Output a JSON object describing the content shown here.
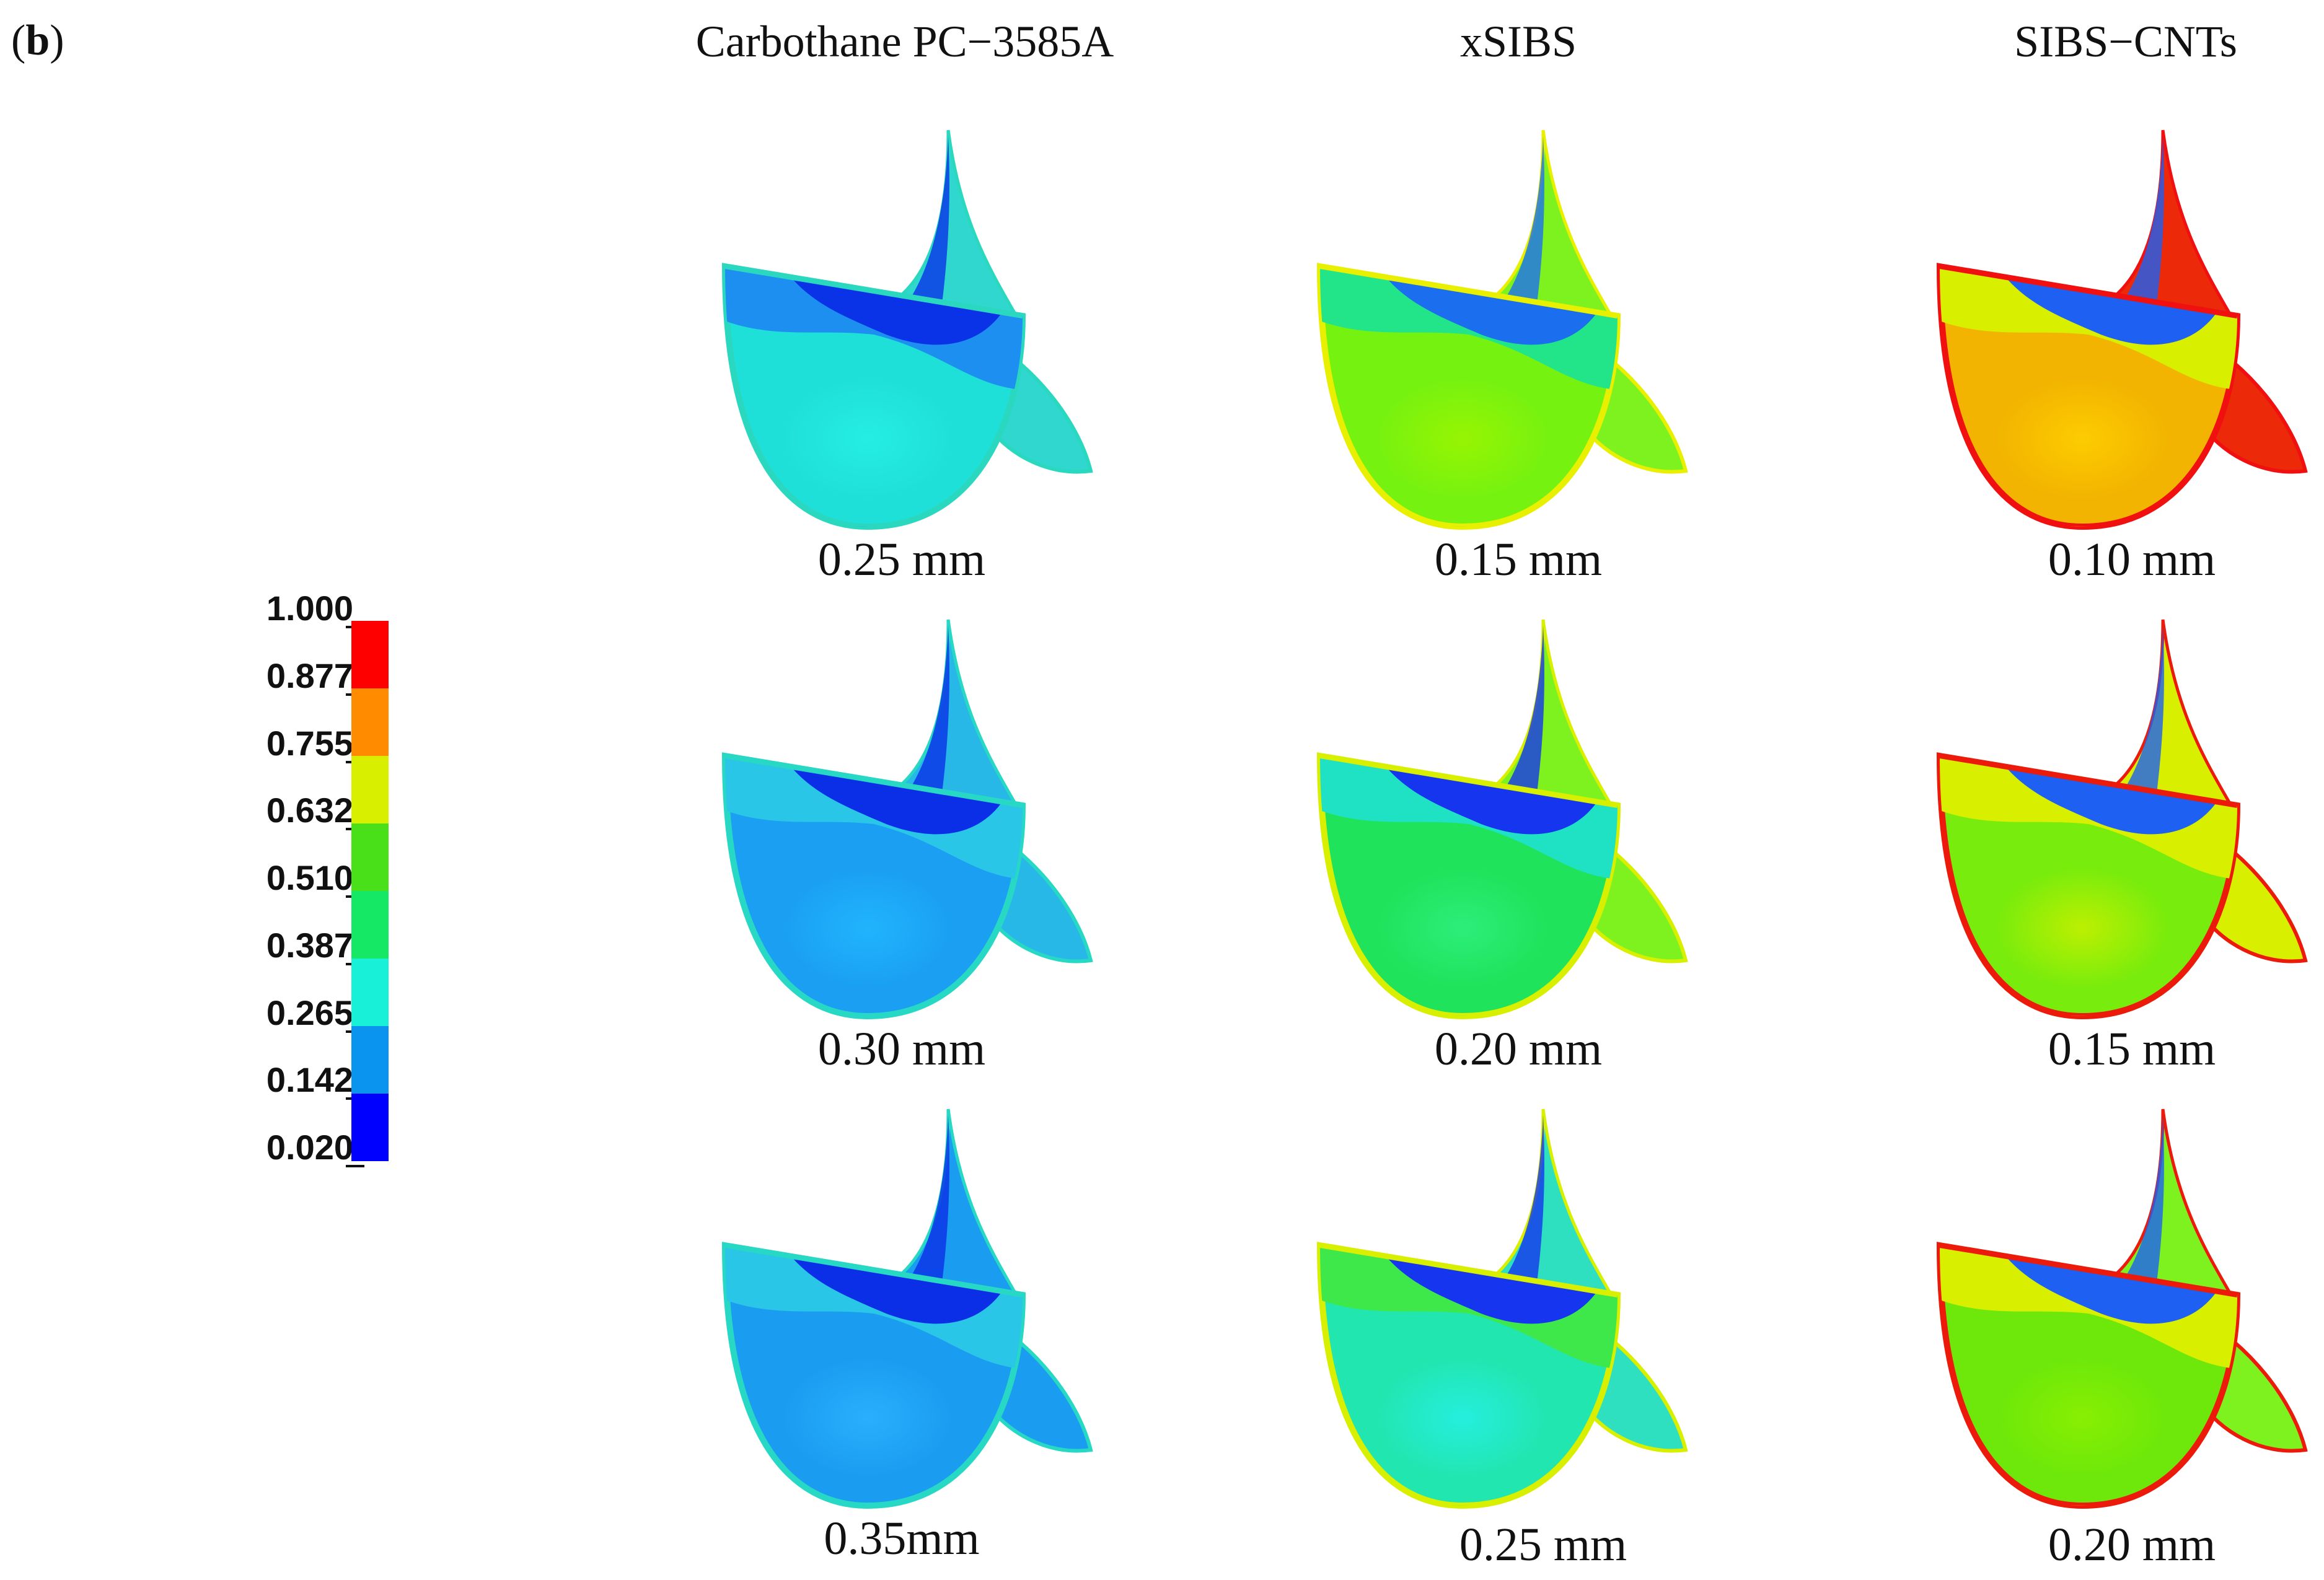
{
  "panel_label": {
    "open": "(",
    "letter": "b",
    "close": ")"
  },
  "columns": [
    {
      "title": "Carbothane PC−3585A"
    },
    {
      "title": "xSIBS"
    },
    {
      "title": "SIBS−CNTs"
    }
  ],
  "legend": {
    "labels": [
      "1.000",
      "0.877",
      "0.755",
      "0.632",
      "0.510",
      "0.387",
      "0.265",
      "0.142",
      "0.020"
    ],
    "colors": [
      "#ff0000",
      "#ff8c00",
      "#d8f000",
      "#49e01a",
      "#14e864",
      "#19f0d8",
      "#0b93f0",
      "#0000ff"
    ]
  },
  "grid": [
    {
      "thickness": "0.25 mm",
      "colors": {
        "base": "#1fe0d8",
        "band1": "#1c8ff0",
        "band2": "#0a32e6",
        "rim": "#2ad8c0",
        "leaf": "#2fd7cf",
        "highlight": "#26f0e6"
      }
    },
    {
      "thickness": "0.15 mm",
      "colors": {
        "base": "#76f210",
        "band1": "#22e58a",
        "band2": "#1b6fef",
        "rim": "#e8f000",
        "leaf": "#7ef21e",
        "highlight": "#9cf500"
      }
    },
    {
      "thickness": "0.10 mm",
      "colors": {
        "base": "#f2b400",
        "band1": "#d8f000",
        "band2": "#1d60f2",
        "rim": "#f01010",
        "leaf": "#ec2a0a",
        "highlight": "#ffd000"
      }
    },
    {
      "thickness": "0.30 mm",
      "colors": {
        "base": "#1a9ff2",
        "band1": "#29c6e8",
        "band2": "#0a2fe6",
        "rim": "#27d8c5",
        "leaf": "#27b8e8",
        "highlight": "#22b8ff"
      }
    },
    {
      "thickness": "0.20 mm",
      "colors": {
        "base": "#1fe35a",
        "band1": "#1fe2c4",
        "band2": "#1535ee",
        "rim": "#d8f000",
        "leaf": "#7ef21e",
        "highlight": "#2ef080"
      }
    },
    {
      "thickness": "0.15 mm",
      "colors": {
        "base": "#78ec0c",
        "band1": "#d8f000",
        "band2": "#1d60f2",
        "rim": "#ec1a0a",
        "leaf": "#d8f000",
        "highlight": "#c8f000"
      }
    },
    {
      "thickness": "0.35mm",
      "colors": {
        "base": "#1a9cf0",
        "band1": "#29c6e8",
        "band2": "#0a2fe6",
        "rim": "#27d8c5",
        "leaf": "#1a9cf0",
        "highlight": "#2cb2ff"
      }
    },
    {
      "thickness": "0.25 mm",
      "colors": {
        "base": "#21e6b0",
        "band1": "#3ee84a",
        "band2": "#1535ee",
        "rim": "#d8f000",
        "leaf": "#2fe0c0",
        "highlight": "#26f0e6"
      }
    },
    {
      "thickness": "0.20 mm",
      "colors": {
        "base": "#6de80a",
        "band1": "#d8f000",
        "band2": "#1d60f2",
        "rim": "#ec1a0a",
        "leaf": "#7ef21e",
        "highlight": "#8cf000"
      }
    }
  ]
}
